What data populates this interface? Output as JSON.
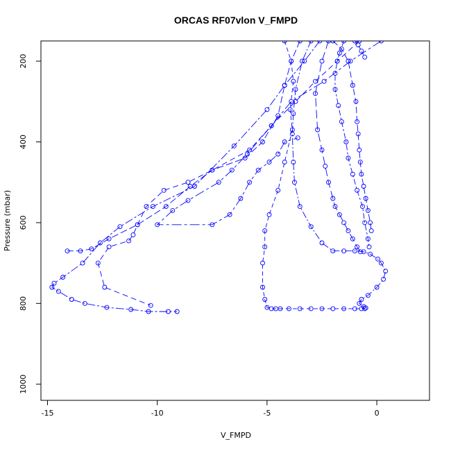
{
  "chart_data": {
    "type": "line",
    "title": "ORCAS RF07vlon V_FMPD",
    "xlabel": "V_FMPD",
    "ylabel": "Pressure (mbar)",
    "xlim": [
      -15.3,
      2.4
    ],
    "ylim": [
      1040,
      150
    ],
    "y_inverted": true,
    "x_ticks": [
      -15,
      -10,
      -5,
      0
    ],
    "y_ticks": [
      200,
      400,
      600,
      800,
      1000
    ],
    "grid": false,
    "legend": "none",
    "marker": "open-circle",
    "color": "#0000ff",
    "series": [
      {
        "x": [
          -3.5,
          -3.9,
          -4.2,
          -4.5,
          -5.2,
          -6.0,
          -7.5,
          -8.5,
          -9.6,
          -10.9,
          -12.2,
          -13.0,
          -13.5,
          -14.1
        ],
        "y": [
          150,
          200,
          260,
          335,
          400,
          440,
          470,
          510,
          560,
          605,
          640,
          665,
          670,
          670
        ]
      },
      {
        "x": [
          -2.6,
          -3.3,
          -4.2,
          -5.0,
          -6.5,
          -8.3,
          -10.2,
          -11.7,
          -12.6,
          -13.4,
          -14.3,
          -14.7,
          -14.8,
          -14.5,
          -13.9,
          -13.3,
          -12.3,
          -11.2,
          -10.4,
          -9.5,
          -9.1
        ],
        "y": [
          150,
          200,
          260,
          320,
          410,
          510,
          560,
          610,
          650,
          700,
          735,
          750,
          760,
          770,
          790,
          800,
          810,
          815,
          820,
          820,
          820
        ]
      },
      {
        "x": [
          -0.8,
          -1.8,
          -2.8,
          -3.7,
          -4.8,
          -5.8,
          -7.5,
          -8.6,
          -9.7,
          -10.5,
          -10.9,
          -11.1,
          -11.3,
          -12.2,
          -12.7,
          -12.4,
          -10.3
        ],
        "y": [
          150,
          200,
          250,
          300,
          360,
          420,
          470,
          500,
          520,
          560,
          605,
          630,
          645,
          660,
          700,
          760,
          805
        ]
      },
      {
        "x": [
          0.2,
          -1.2,
          -2.4,
          -3.9,
          -4.8,
          -5.9,
          -6.6,
          -7.2,
          -8.6,
          -9.3,
          -10.0,
          -7.5,
          -6.7,
          -6.2,
          -5.8,
          -5.4,
          -4.9,
          -4.5,
          -4.2,
          -3.6
        ],
        "y": [
          150,
          200,
          250,
          300,
          360,
          430,
          470,
          500,
          545,
          570,
          605,
          605,
          580,
          540,
          500,
          470,
          450,
          430,
          400,
          390
        ]
      },
      {
        "x": [
          -4.2,
          -3.9,
          -3.8,
          -3.95,
          -3.85,
          -4.2,
          -4.5,
          -4.9,
          -5.1,
          -5.1,
          -5.2,
          -5.2,
          -5.1,
          -5.0,
          -4.8,
          -4.6,
          -4.4,
          -4.0,
          -3.5,
          -3.0,
          -2.5,
          -2.0,
          -1.5,
          -1.0,
          -0.7,
          -0.55
        ],
        "y": [
          150,
          200,
          250,
          320,
          370,
          450,
          520,
          580,
          620,
          660,
          700,
          760,
          790,
          810,
          813,
          813,
          813,
          813,
          813,
          813,
          813,
          813,
          813,
          813,
          813,
          813
        ]
      },
      {
        "x": [
          -3.0,
          -3.4,
          -3.7,
          -3.8,
          -3.85,
          -3.8,
          -3.75,
          -3.5,
          -3.0,
          -2.5,
          -2.0,
          -1.5,
          -1.0,
          -0.6,
          -0.3,
          0.05,
          0.2,
          0.4,
          0.3,
          0.0,
          -0.4,
          -0.7,
          -0.8,
          -0.6,
          -0.5
        ],
        "y": [
          150,
          200,
          270,
          330,
          380,
          450,
          500,
          560,
          610,
          650,
          670,
          670,
          670,
          672,
          678,
          690,
          700,
          720,
          740,
          760,
          780,
          790,
          800,
          808,
          811
        ]
      },
      {
        "x": [
          -2.2,
          -2.5,
          -2.8,
          -2.7,
          -2.5,
          -2.35,
          -2.2,
          -2.0,
          -1.9,
          -1.7,
          -1.5,
          -1.3,
          -1.1,
          -0.9,
          -0.75
        ],
        "y": [
          150,
          200,
          280,
          370,
          420,
          460,
          500,
          540,
          560,
          580,
          600,
          620,
          640,
          660,
          672
        ]
      },
      {
        "x": [
          -1.5,
          -1.7,
          -1.8,
          -1.9,
          -1.9,
          -1.75,
          -1.6,
          -1.4,
          -1.3,
          -1.1,
          -0.9,
          -0.65,
          -0.55,
          -0.4,
          -0.35
        ],
        "y": [
          150,
          180,
          200,
          230,
          270,
          310,
          350,
          400,
          440,
          480,
          520,
          560,
          600,
          640,
          660
        ]
      },
      {
        "x": [
          -2.0,
          -1.6,
          -1.3,
          -1.1,
          -0.95,
          -0.9,
          -0.85,
          -0.8,
          -0.75,
          -0.7,
          -0.6,
          -0.5,
          -0.4,
          -0.3,
          -0.25
        ],
        "y": [
          150,
          170,
          200,
          260,
          300,
          350,
          380,
          420,
          450,
          480,
          510,
          540,
          570,
          600,
          620
        ]
      },
      {
        "x": [
          -1.0,
          -0.85,
          -0.7,
          -0.55
        ],
        "y": [
          150,
          160,
          175,
          190
        ]
      }
    ]
  }
}
